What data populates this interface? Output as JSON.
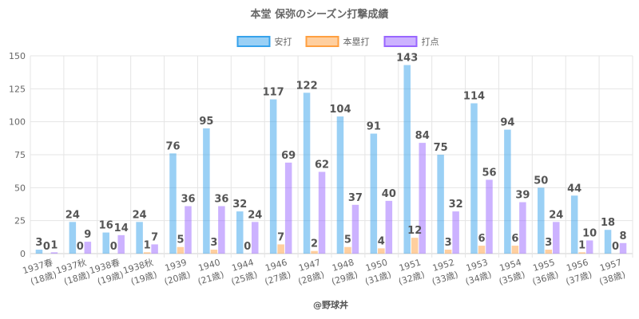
{
  "chart_data": {
    "type": "bar",
    "title": "本堂 保弥のシーズン打撃成績",
    "footer": "@野球丼",
    "ylim": [
      0,
      150
    ],
    "yticks": [
      0,
      25,
      50,
      75,
      100,
      125,
      150
    ],
    "legend_position": "top-center",
    "categories": [
      [
        "1937春",
        "(18歳)"
      ],
      [
        "1937秋",
        "(18歳)"
      ],
      [
        "1938春",
        "(19歳)"
      ],
      [
        "1938秋",
        "(19歳)"
      ],
      [
        "1939",
        "(20歳)"
      ],
      [
        "1940",
        "(21歳)"
      ],
      [
        "1944",
        "(25歳)"
      ],
      [
        "1946",
        "(27歳)"
      ],
      [
        "1947",
        "(28歳)"
      ],
      [
        "1948",
        "(29歳)"
      ],
      [
        "1950",
        "(31歳)"
      ],
      [
        "1951",
        "(32歳)"
      ],
      [
        "1952",
        "(33歳)"
      ],
      [
        "1953",
        "(34歳)"
      ],
      [
        "1954",
        "(35歳)"
      ],
      [
        "1955",
        "(36歳)"
      ],
      [
        "1956",
        "(37歳)"
      ],
      [
        "1957",
        "(38歳)"
      ]
    ],
    "series": [
      {
        "name": "安打",
        "color": "#36a2eb",
        "fill": "rgba(54,162,235,0.5)",
        "values": [
          3,
          24,
          16,
          24,
          76,
          95,
          32,
          117,
          122,
          104,
          91,
          143,
          75,
          114,
          94,
          50,
          44,
          18
        ]
      },
      {
        "name": "本塁打",
        "color": "#ff9f40",
        "fill": "rgba(255,159,64,0.5)",
        "values": [
          0,
          0,
          0,
          1,
          5,
          3,
          0,
          7,
          2,
          5,
          4,
          12,
          3,
          6,
          6,
          3,
          1,
          0
        ]
      },
      {
        "name": "打点",
        "color": "#9966ff",
        "fill": "rgba(153,102,255,0.5)",
        "values": [
          1,
          9,
          14,
          7,
          36,
          36,
          24,
          69,
          62,
          37,
          40,
          84,
          32,
          56,
          39,
          24,
          10,
          8
        ]
      }
    ]
  }
}
